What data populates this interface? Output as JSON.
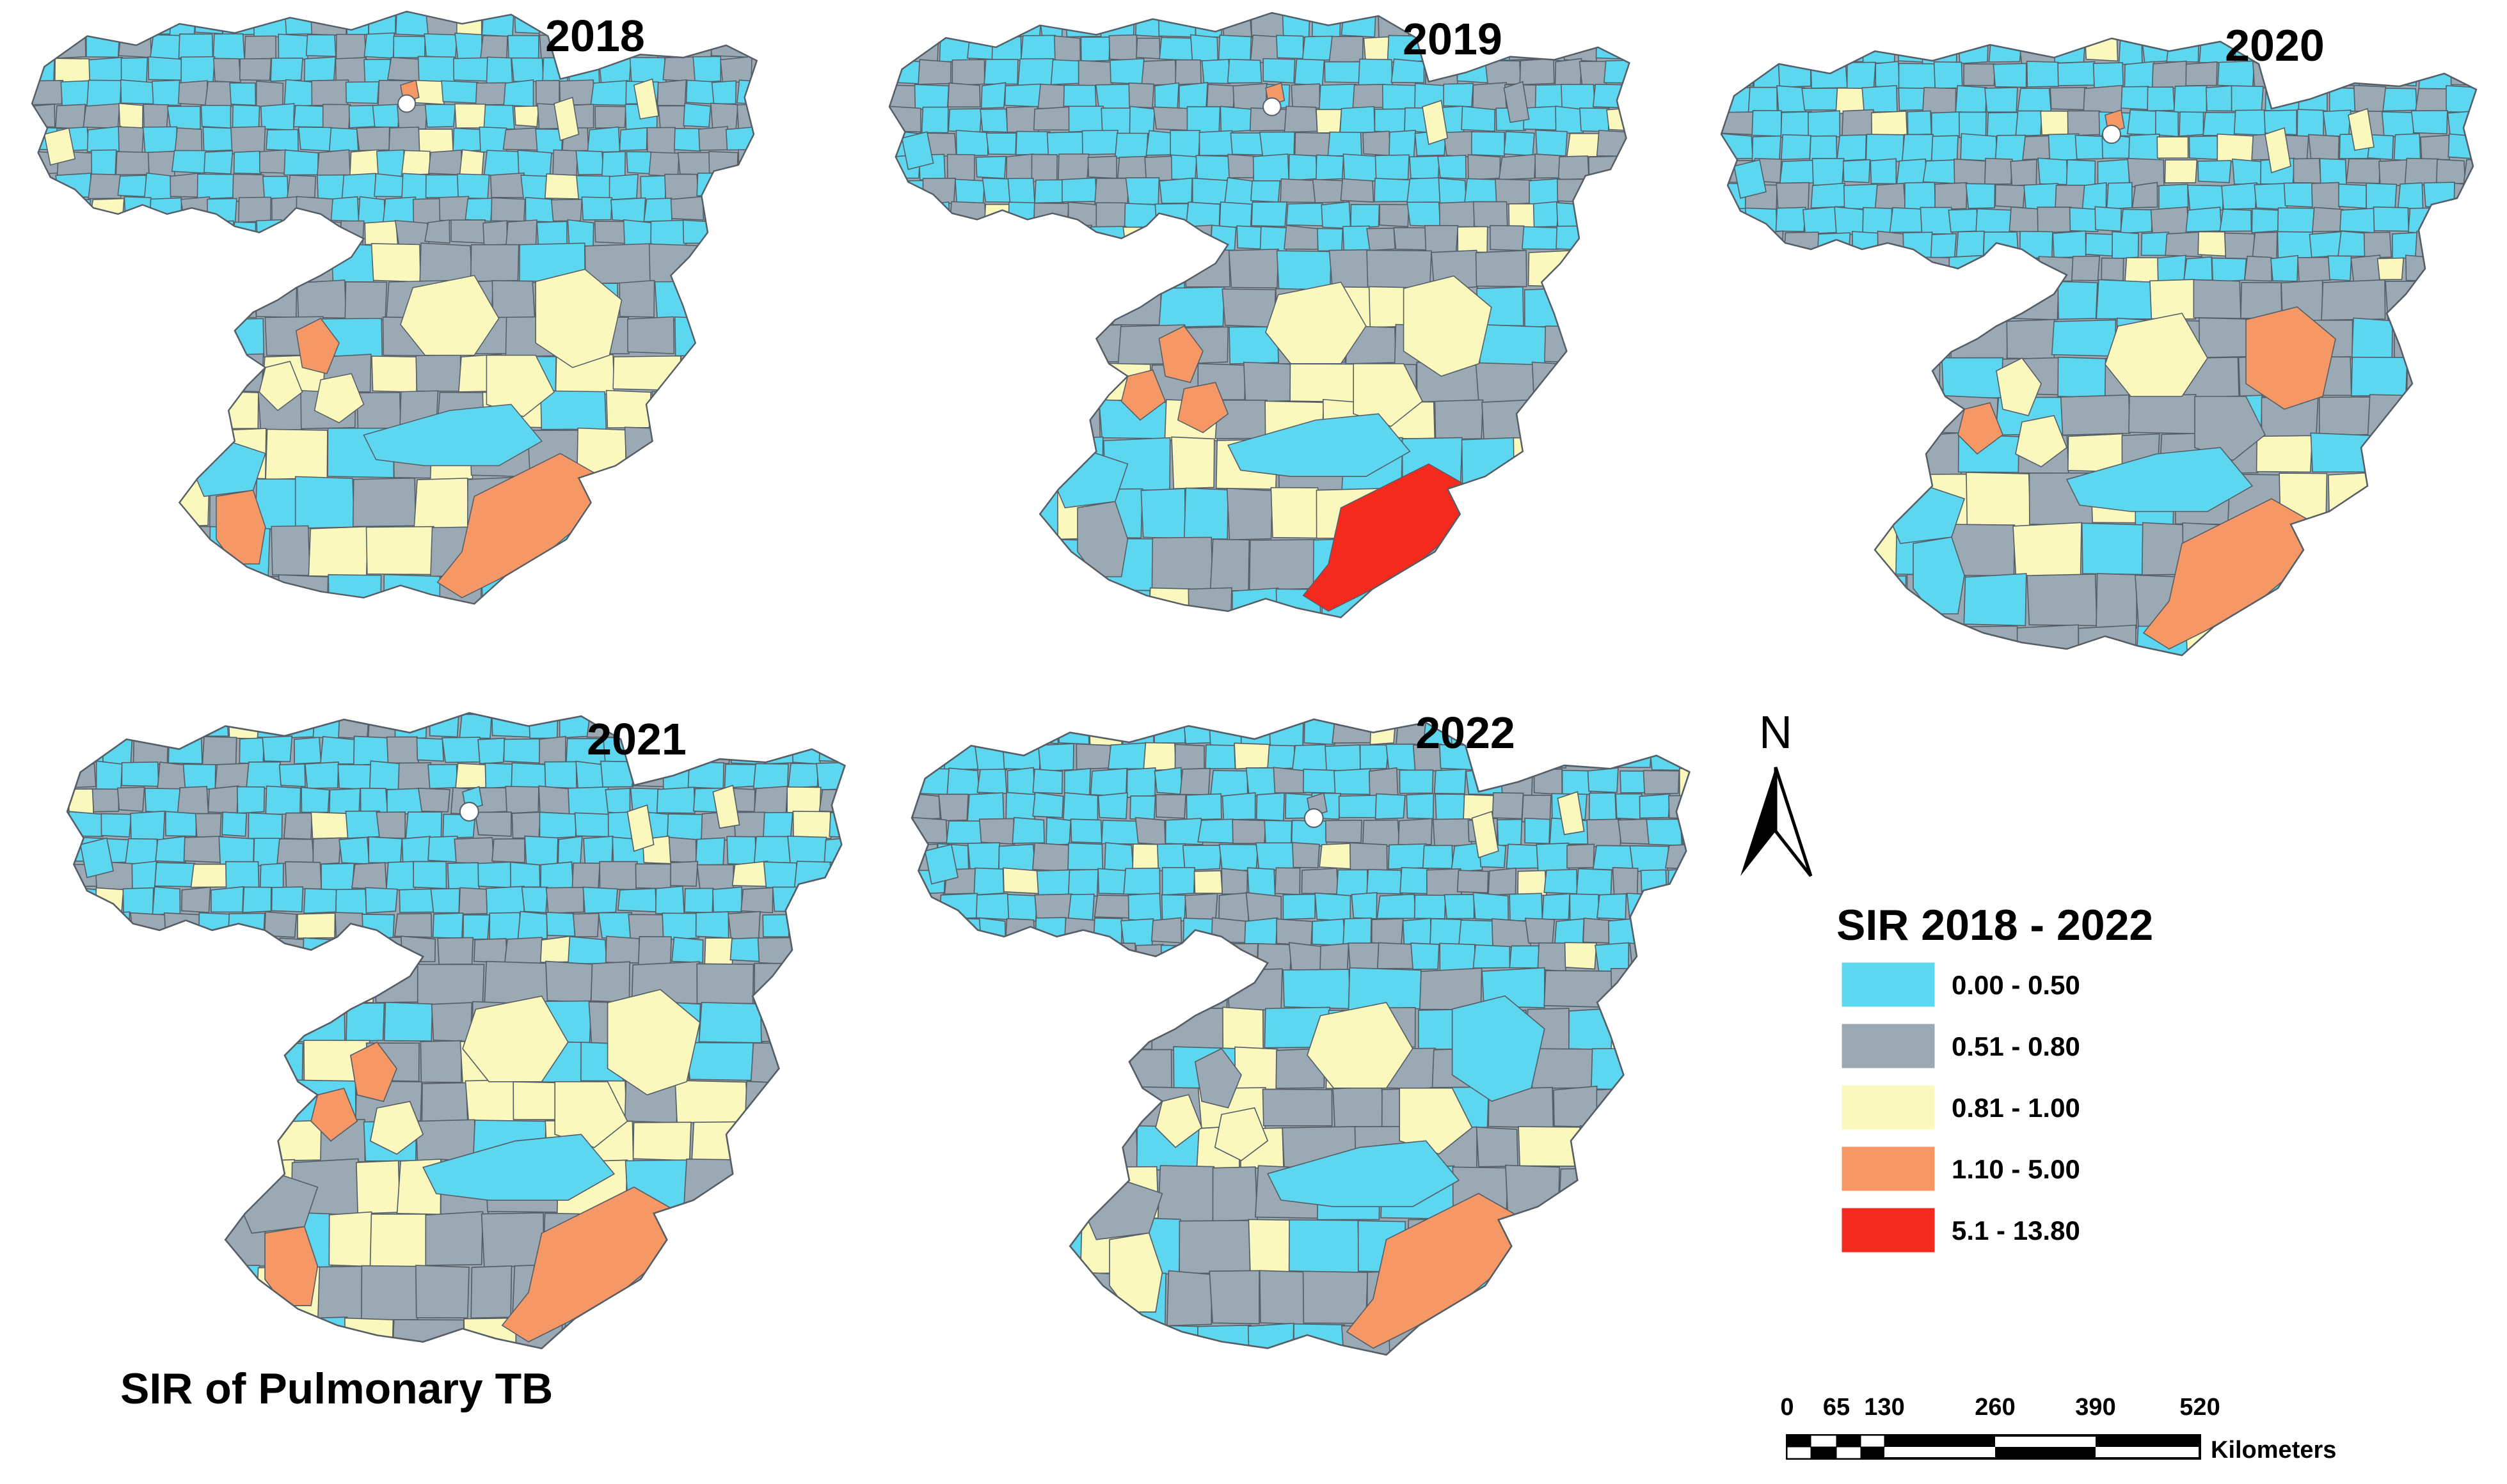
{
  "title": "SIR of Pulmonary TB",
  "colors": {
    "c1": "#5dd6f0",
    "c2": "#9aa9b3",
    "c3": "#fbf8bd",
    "c4": "#f59866",
    "c5": "#f42a1f",
    "border": "#555e66"
  },
  "maps": [
    {
      "year": "2018"
    },
    {
      "year": "2019"
    },
    {
      "year": "2020"
    },
    {
      "year": "2021"
    },
    {
      "year": "2022"
    }
  ],
  "legend": {
    "title": "SIR 2018 - 2022",
    "classes": [
      {
        "label": "0.00 - 0.50",
        "color": "#5dd6f0"
      },
      {
        "label": "0.51 - 0.80",
        "color": "#9aa9b3"
      },
      {
        "label": "0.81 - 1.00",
        "color": "#fbf8bd"
      },
      {
        "label": "1.10 - 5.00",
        "color": "#f59866"
      },
      {
        "label": "5.1 - 13.80",
        "color": "#f42a1f"
      }
    ]
  },
  "north_arrow": {
    "label": "N",
    "icon": "north-arrow-icon"
  },
  "scale_bar": {
    "ticks": [
      "0",
      "65",
      "130",
      "260",
      "390",
      "520"
    ],
    "unit": "Kilometers"
  }
}
